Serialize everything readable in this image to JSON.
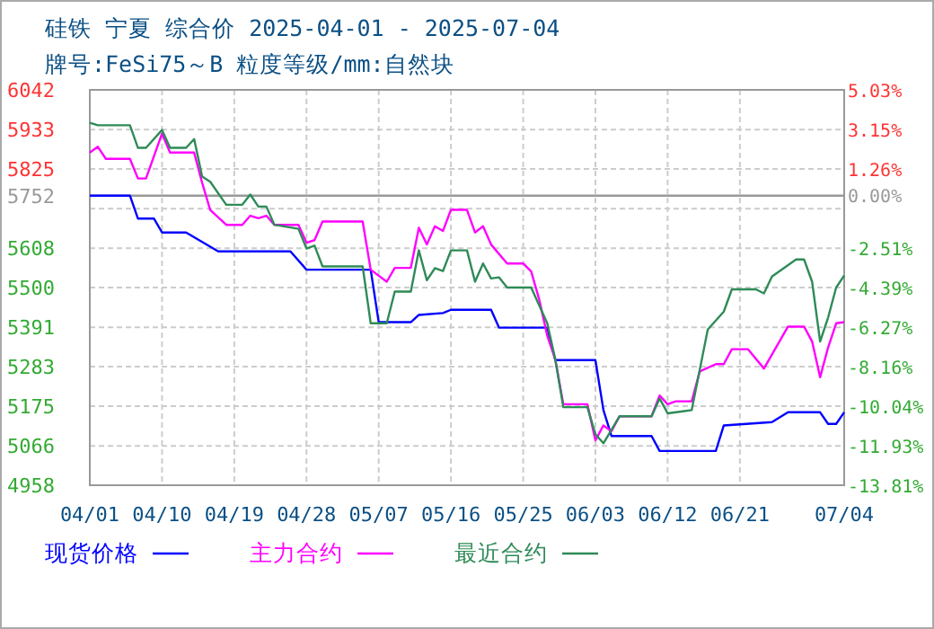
{
  "chart_data": {
    "type": "line",
    "title": "硅铁 宁夏 综合价 2025-04-01 - 2025-07-04",
    "subtitle": "牌号:FeSi75～B 粒度等级/mm:自然块",
    "xlim": [
      "2025-04-01",
      "2025-07-04"
    ],
    "xticks": [
      {
        "value": "2025-04-01",
        "label": "04/01"
      },
      {
        "value": "2025-04-10",
        "label": "04/10"
      },
      {
        "value": "2025-04-19",
        "label": "04/19"
      },
      {
        "value": "2025-04-28",
        "label": "04/28"
      },
      {
        "value": "2025-05-07",
        "label": "05/07"
      },
      {
        "value": "2025-05-16",
        "label": "05/16"
      },
      {
        "value": "2025-05-25",
        "label": "05/25"
      },
      {
        "value": "2025-06-03",
        "label": "06/03"
      },
      {
        "value": "2025-06-12",
        "label": "06/12"
      },
      {
        "value": "2025-06-21",
        "label": "06/21"
      },
      {
        "value": "2025-07-04",
        "label": "07/04"
      }
    ],
    "ylim": [
      4958,
      6042
    ],
    "yticks": [
      4958,
      5066,
      5175,
      5283,
      5391,
      5500,
      5608,
      {
        "value": 5716,
        "label": null
      },
      5752,
      5825,
      5933,
      6042
    ],
    "y2lim": [
      -13.81,
      5.03
    ],
    "y2ticks": [
      {
        "value": -13.81,
        "label": "-13.81%"
      },
      {
        "value": -11.93,
        "label": "-11.93%"
      },
      {
        "value": -10.04,
        "label": "-10.04%"
      },
      {
        "value": -8.16,
        "label": "-8.16%"
      },
      {
        "value": -6.27,
        "label": "-6.27%"
      },
      {
        "value": -4.39,
        "label": "-4.39%"
      },
      {
        "value": -2.51,
        "label": "-2.51%"
      },
      {
        "value": 0,
        "label": "0.00%"
      },
      {
        "value": 1.26,
        "label": "1.26%"
      },
      {
        "value": 3.15,
        "label": "3.15%"
      },
      {
        "value": 5.03,
        "label": "5.03%"
      }
    ],
    "ref_lines": [
      {
        "axis": "y",
        "value": 5752,
        "color": "#999999"
      }
    ],
    "grid": true,
    "legend": "bottom",
    "series": [
      {
        "name": "现货价格",
        "color": "#0000ff",
        "x": [
          "2025-04-01",
          "2025-04-06",
          "2025-04-07",
          "2025-04-09",
          "2025-04-10",
          "2025-04-13",
          "2025-04-17",
          "2025-04-26",
          "2025-04-28",
          "2025-05-06",
          "2025-05-07",
          "2025-05-11",
          "2025-05-12",
          "2025-05-15",
          "2025-05-16",
          "2025-05-21",
          "2025-05-22",
          "2025-05-28",
          "2025-05-29",
          "2025-06-03",
          "2025-06-04",
          "2025-06-05",
          "2025-06-10",
          "2025-06-11",
          "2025-06-18",
          "2025-06-19",
          "2025-06-25",
          "2025-06-27",
          "2025-07-01",
          "2025-07-02",
          "2025-07-03",
          "2025-07-04"
        ],
        "values": [
          5752,
          5752,
          5689,
          5689,
          5651,
          5651,
          5599,
          5599,
          5549,
          5549,
          5405,
          5405,
          5425,
          5430,
          5439,
          5439,
          5390,
          5390,
          5301,
          5301,
          5164,
          5093,
          5093,
          5052,
          5052,
          5122,
          5131,
          5158,
          5158,
          5126,
          5126,
          5158
        ]
      },
      {
        "name": "主力合约",
        "color": "#ff00ff",
        "x": [
          "2025-04-01",
          "2025-04-02",
          "2025-04-03",
          "2025-04-06",
          "2025-04-07",
          "2025-04-08",
          "2025-04-10",
          "2025-04-11",
          "2025-04-14",
          "2025-04-15",
          "2025-04-16",
          "2025-04-18",
          "2025-04-20",
          "2025-04-21",
          "2025-04-22",
          "2025-04-23",
          "2025-04-24",
          "2025-04-27",
          "2025-04-28",
          "2025-04-29",
          "2025-04-30",
          "2025-05-05",
          "2025-05-06",
          "2025-05-08",
          "2025-05-09",
          "2025-05-11",
          "2025-05-12",
          "2025-05-13",
          "2025-05-14",
          "2025-05-15",
          "2025-05-16",
          "2025-05-18",
          "2025-05-19",
          "2025-05-20",
          "2025-05-21",
          "2025-05-23",
          "2025-05-25",
          "2025-05-26",
          "2025-05-27",
          "2025-05-28",
          "2025-05-29",
          "2025-05-30",
          "2025-06-02",
          "2025-06-03",
          "2025-06-04",
          "2025-06-05",
          "2025-06-06",
          "2025-06-10",
          "2025-06-11",
          "2025-06-12",
          "2025-06-13",
          "2025-06-15",
          "2025-06-16",
          "2025-06-18",
          "2025-06-19",
          "2025-06-20",
          "2025-06-22",
          "2025-06-24",
          "2025-06-27",
          "2025-06-29",
          "2025-06-30",
          "2025-07-01",
          "2025-07-02",
          "2025-07-03",
          "2025-07-04"
        ],
        "values": [
          5870,
          5886,
          5853,
          5853,
          5799,
          5799,
          5922,
          5870,
          5870,
          5787,
          5713,
          5672,
          5672,
          5697,
          5690,
          5697,
          5672,
          5672,
          5623,
          5630,
          5681,
          5681,
          5549,
          5516,
          5554,
          5554,
          5664,
          5618,
          5668,
          5655,
          5713,
          5713,
          5651,
          5668,
          5618,
          5566,
          5566,
          5544,
          5467,
          5368,
          5303,
          5180,
          5180,
          5081,
          5122,
          5106,
          5147,
          5147,
          5204,
          5180,
          5188,
          5188,
          5270,
          5290,
          5290,
          5331,
          5331,
          5278,
          5393,
          5393,
          5352,
          5254,
          5336,
          5402,
          5405
        ]
      },
      {
        "name": "最近合约",
        "color": "#2e8b57",
        "x": [
          "2025-04-01",
          "2025-04-02",
          "2025-04-06",
          "2025-04-07",
          "2025-04-08",
          "2025-04-10",
          "2025-04-11",
          "2025-04-13",
          "2025-04-14",
          "2025-04-15",
          "2025-04-16",
          "2025-04-18",
          "2025-04-20",
          "2025-04-21",
          "2025-04-22",
          "2025-04-23",
          "2025-04-24",
          "2025-04-27",
          "2025-04-28",
          "2025-04-29",
          "2025-04-30",
          "2025-05-05",
          "2025-05-06",
          "2025-05-08",
          "2025-05-09",
          "2025-05-11",
          "2025-05-12",
          "2025-05-13",
          "2025-05-14",
          "2025-05-15",
          "2025-05-16",
          "2025-05-18",
          "2025-05-19",
          "2025-05-20",
          "2025-05-21",
          "2025-05-22",
          "2025-05-23",
          "2025-05-26",
          "2025-05-28",
          "2025-05-29",
          "2025-05-30",
          "2025-06-02",
          "2025-06-03",
          "2025-06-04",
          "2025-06-05",
          "2025-06-06",
          "2025-06-10",
          "2025-06-11",
          "2025-06-12",
          "2025-06-15",
          "2025-06-17",
          "2025-06-19",
          "2025-06-20",
          "2025-06-23",
          "2025-06-24",
          "2025-06-25",
          "2025-06-28",
          "2025-06-29",
          "2025-06-30",
          "2025-07-01",
          "2025-07-02",
          "2025-07-03",
          "2025-07-04"
        ],
        "values": [
          5952,
          5945,
          5945,
          5883,
          5883,
          5932,
          5883,
          5883,
          5907,
          5804,
          5790,
          5727,
          5727,
          5755,
          5722,
          5722,
          5672,
          5661,
          5607,
          5615,
          5558,
          5558,
          5402,
          5402,
          5489,
          5489,
          5602,
          5520,
          5553,
          5545,
          5602,
          5602,
          5516,
          5566,
          5525,
          5528,
          5500,
          5500,
          5402,
          5303,
          5172,
          5172,
          5098,
          5073,
          5110,
          5147,
          5147,
          5196,
          5155,
          5164,
          5385,
          5434,
          5495,
          5495,
          5484,
          5530,
          5577,
          5577,
          5516,
          5352,
          5418,
          5500,
          5533
        ]
      }
    ]
  }
}
